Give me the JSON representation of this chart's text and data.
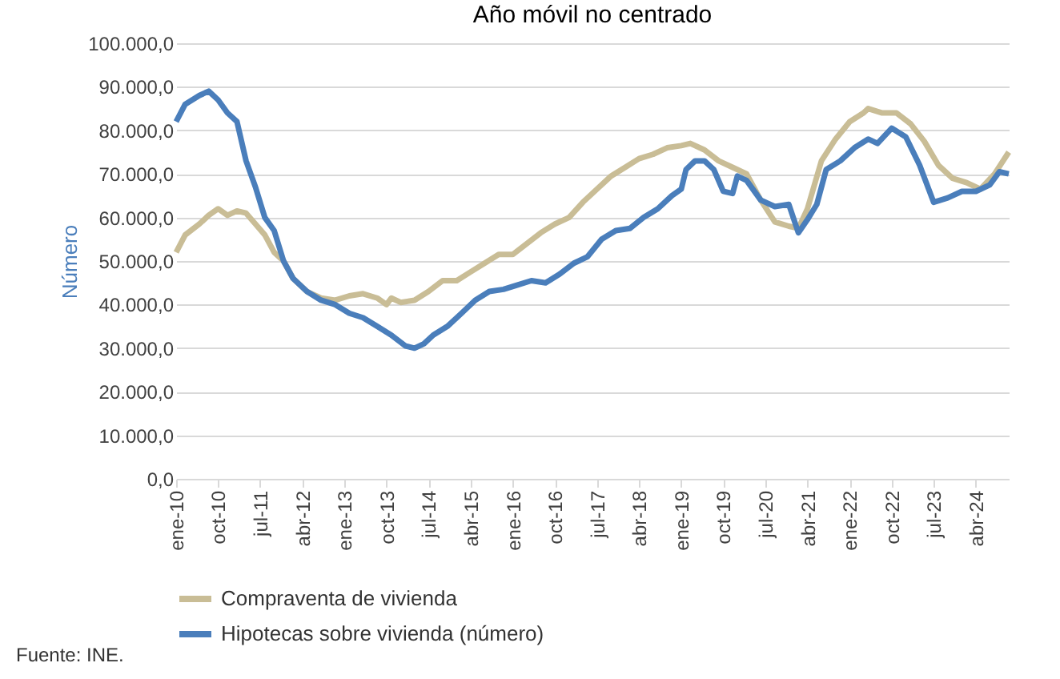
{
  "chart_data": {
    "type": "line",
    "title": "Año móvil no centrado",
    "ylabel": "Número",
    "annotations": [
      "Fuente: INE."
    ],
    "x": [
      "2010-01",
      "2010-03",
      "2010-06",
      "2010-08",
      "2010-10",
      "2010-12",
      "2011-02",
      "2011-04",
      "2011-06",
      "2011-08",
      "2011-10",
      "2011-12",
      "2012-02",
      "2012-05",
      "2012-08",
      "2012-11",
      "2013-02",
      "2013-05",
      "2013-08",
      "2013-10",
      "2013-11",
      "2014-01",
      "2014-04",
      "2014-07",
      "2014-10",
      "2015-01",
      "2015-04",
      "2015-07",
      "2015-10",
      "2016-01",
      "2016-04",
      "2016-07",
      "2016-10",
      "2017-01",
      "2017-04",
      "2017-07",
      "2017-10",
      "2018-01",
      "2018-04",
      "2018-07",
      "2018-10",
      "2019-01",
      "2019-03",
      "2019-06",
      "2019-09",
      "2019-12",
      "2020-03",
      "2020-06",
      "2020-09",
      "2020-12",
      "2021-02",
      "2021-04",
      "2021-07",
      "2021-10",
      "2022-01",
      "2022-04",
      "2022-05",
      "2022-08",
      "2022-11",
      "2023-02",
      "2023-05",
      "2023-08",
      "2023-11",
      "2024-02",
      "2024-05",
      "2024-08",
      "2024-11"
    ],
    "series": [
      {
        "name": "Compraventa de vivienda",
        "color": "#c9bd96",
        "values": [
          52000,
          56000,
          58500,
          60500,
          62000,
          60500,
          61500,
          61000,
          58500,
          56000,
          52000,
          50000,
          46000,
          43000,
          41500,
          41000,
          42000,
          42500,
          41500,
          40000,
          41500,
          40500,
          41000,
          43000,
          45500,
          45500,
          47500,
          49500,
          51500,
          51500,
          54000,
          56500,
          58500,
          60000,
          63500,
          66500,
          69500,
          71500,
          73500,
          74500,
          76000,
          76500,
          77000,
          75500,
          73000,
          71500,
          70000,
          64000,
          59000,
          58000,
          57500,
          62000,
          73000,
          78000,
          82000,
          84000,
          85000,
          84000,
          84000,
          81500,
          77500,
          72000,
          69000,
          68000,
          66500,
          70000,
          75000
        ]
      },
      {
        "name": "Hipotecas sobre vivienda (número)",
        "color": "#4a7ebb",
        "x": [
          "2010-01",
          "2010-03",
          "2010-06",
          "2010-08",
          "2010-10",
          "2010-12",
          "2011-02",
          "2011-04",
          "2011-06",
          "2011-08",
          "2011-10",
          "2011-12",
          "2012-02",
          "2012-05",
          "2012-08",
          "2012-11",
          "2013-02",
          "2013-05",
          "2013-08",
          "2013-11",
          "2014-02",
          "2014-04",
          "2014-06",
          "2014-08",
          "2014-11",
          "2015-02",
          "2015-05",
          "2015-08",
          "2015-11",
          "2016-02",
          "2016-05",
          "2016-08",
          "2016-11",
          "2017-02",
          "2017-05",
          "2017-08",
          "2017-11",
          "2018-02",
          "2018-05",
          "2018-08",
          "2018-11",
          "2019-01",
          "2019-02",
          "2019-04",
          "2019-06",
          "2019-08",
          "2019-10",
          "2019-12",
          "2020-01",
          "2020-03",
          "2020-06",
          "2020-09",
          "2020-12",
          "2021-02",
          "2021-04",
          "2021-06",
          "2021-08",
          "2021-11",
          "2022-02",
          "2022-05",
          "2022-07",
          "2022-10",
          "2023-01",
          "2023-04",
          "2023-07",
          "2023-10",
          "2024-01",
          "2024-04",
          "2024-07",
          "2024-09",
          "2024-11"
        ],
        "values": [
          82000,
          86000,
          88000,
          89000,
          87000,
          84000,
          82000,
          73000,
          67000,
          60000,
          57000,
          50000,
          46000,
          43000,
          41000,
          40000,
          38000,
          37000,
          35000,
          33000,
          30500,
          30000,
          31000,
          33000,
          35000,
          38000,
          41000,
          43000,
          43500,
          44500,
          45500,
          45000,
          47000,
          49500,
          51000,
          55000,
          57000,
          57500,
          60000,
          62000,
          65000,
          66500,
          71000,
          73000,
          73000,
          71000,
          66000,
          65500,
          69500,
          68500,
          64000,
          62500,
          63000,
          56500,
          59500,
          63000,
          71000,
          73000,
          76000,
          78000,
          77000,
          80500,
          78500,
          72000,
          63500,
          64500,
          66000,
          66000,
          67500,
          70500,
          70000
        ]
      }
    ],
    "xlim": [
      "2010-01",
      "2024-11"
    ],
    "xticks": [
      {
        "value": "2010-01",
        "label": "ene-10"
      },
      {
        "value": "2010-10",
        "label": "oct-10"
      },
      {
        "value": "2011-07",
        "label": "jul-11"
      },
      {
        "value": "2012-04",
        "label": "abr-12"
      },
      {
        "value": "2013-01",
        "label": "ene-13"
      },
      {
        "value": "2013-10",
        "label": "oct-13"
      },
      {
        "value": "2014-07",
        "label": "jul-14"
      },
      {
        "value": "2015-04",
        "label": "abr-15"
      },
      {
        "value": "2016-01",
        "label": "ene-16"
      },
      {
        "value": "2016-10",
        "label": "oct-16"
      },
      {
        "value": "2017-07",
        "label": "jul-17"
      },
      {
        "value": "2018-04",
        "label": "abr-18"
      },
      {
        "value": "2019-01",
        "label": "ene-19"
      },
      {
        "value": "2019-10",
        "label": "oct-19"
      },
      {
        "value": "2020-07",
        "label": "jul-20"
      },
      {
        "value": "2021-04",
        "label": "abr-21"
      },
      {
        "value": "2022-01",
        "label": "ene-22"
      },
      {
        "value": "2022-10",
        "label": "oct-22"
      },
      {
        "value": "2023-07",
        "label": "jul-23"
      },
      {
        "value": "2024-04",
        "label": "abr-24"
      }
    ],
    "ylim": [
      0,
      100000
    ],
    "yticks": [
      {
        "value": 0,
        "label": "0,0"
      },
      {
        "value": 10000,
        "label": "10.000,0"
      },
      {
        "value": 20000,
        "label": "20.000,0"
      },
      {
        "value": 30000,
        "label": "30.000,0"
      },
      {
        "value": 40000,
        "label": "40.000,0"
      },
      {
        "value": 50000,
        "label": "50.000,0"
      },
      {
        "value": 60000,
        "label": "60.000,0"
      },
      {
        "value": 70000,
        "label": "70.000,0"
      },
      {
        "value": 80000,
        "label": "80.000,0"
      },
      {
        "value": 90000,
        "label": "90.000,0"
      },
      {
        "value": 100000,
        "label": "100.000,0"
      }
    ],
    "grid": "y",
    "legend": "bottom",
    "marker": "none",
    "line_style": "solid"
  }
}
